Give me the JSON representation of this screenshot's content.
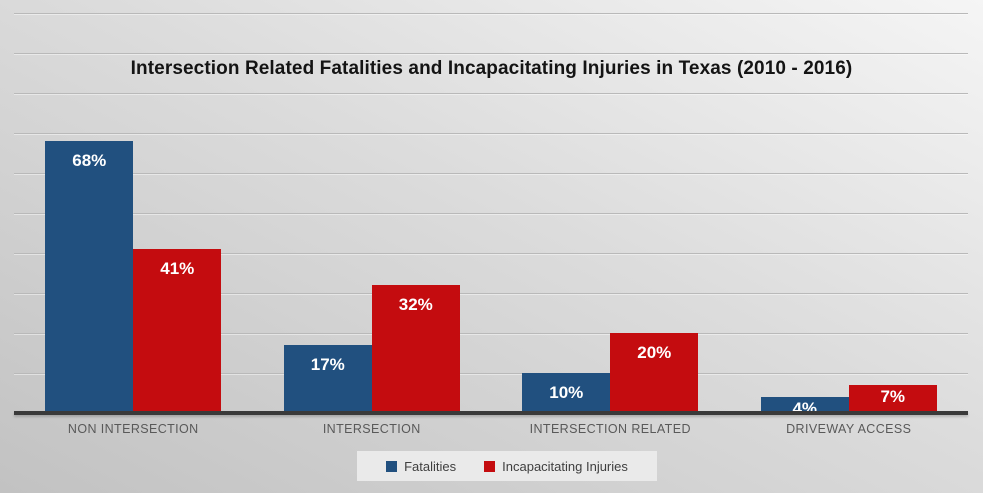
{
  "chart_data": {
    "type": "bar",
    "title": "Intersection Related Fatalities and Incapacitating Injuries in Texas (2010 - 2016)",
    "categories": [
      "NON INTERSECTION",
      "INTERSECTION",
      "INTERSECTION RELATED",
      "DRIVEWAY ACCESS"
    ],
    "series": [
      {
        "name": "Fatalities",
        "color": "#21507F",
        "values": [
          68,
          17,
          10,
          4
        ],
        "labels": [
          "68%",
          "17%",
          "10%",
          "4%"
        ]
      },
      {
        "name": "Incapacitating Injuries",
        "color": "#C40C0F",
        "values": [
          41,
          32,
          20,
          7
        ],
        "labels": [
          "41%",
          "32%",
          "20%",
          "7%"
        ]
      }
    ],
    "ylim": [
      0,
      100
    ],
    "gridline_step": 10,
    "value_suffix": "%",
    "legend_position": "bottom",
    "grid": "horizontal",
    "colors": {
      "axis_line": "#3a3a3a",
      "gridline": "#b9b9b9",
      "category_label": "#595959",
      "data_label": "#ffffff",
      "legend_background": "#eaeaea"
    }
  }
}
